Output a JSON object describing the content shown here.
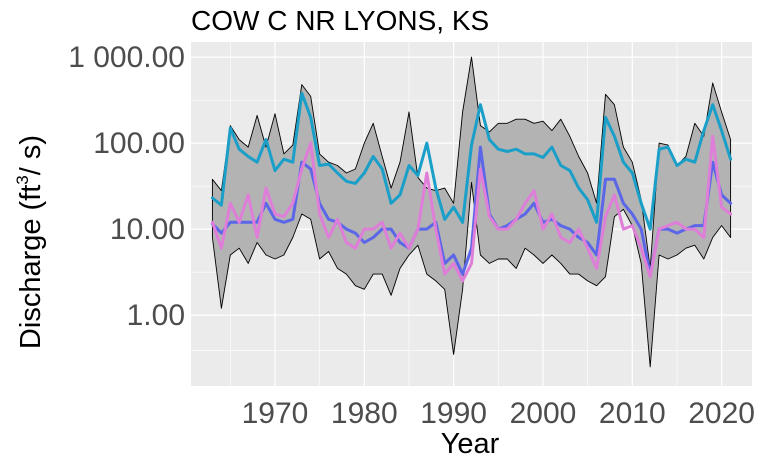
{
  "chart_data": {
    "type": "line",
    "title": "COW C NR LYONS, KS",
    "xlabel": "Year",
    "ylabel": {
      "text_before": "Discharge (ft",
      "superscript": "3",
      "text_after": "/ s)"
    },
    "y_scale": "log10",
    "ylim": [
      0.15,
      1500
    ],
    "xlim": [
      1960.6,
      2023.4
    ],
    "grid": true,
    "y_ticks": [
      {
        "value": 1,
        "label": "1.00"
      },
      {
        "value": 10,
        "label": "10.00"
      },
      {
        "value": 100,
        "label": "100.00"
      },
      {
        "value": 1000,
        "label": "1 000.00"
      }
    ],
    "x_ticks": [
      {
        "value": 1970,
        "label": "1970"
      },
      {
        "value": 1980,
        "label": "1980"
      },
      {
        "value": 1990,
        "label": "1990"
      },
      {
        "value": 2000,
        "label": "2000"
      },
      {
        "value": 2010,
        "label": "2010"
      },
      {
        "value": 2020,
        "label": "2020"
      }
    ],
    "x": [
      1963,
      1964,
      1965,
      1966,
      1967,
      1968,
      1969,
      1970,
      1971,
      1972,
      1973,
      1974,
      1975,
      1976,
      1977,
      1978,
      1979,
      1980,
      1981,
      1982,
      1983,
      1984,
      1985,
      1986,
      1987,
      1988,
      1989,
      1990,
      1991,
      1992,
      1993,
      1994,
      1995,
      1996,
      1997,
      1998,
      1999,
      2000,
      2001,
      2002,
      2003,
      2004,
      2005,
      2006,
      2007,
      2008,
      2009,
      2010,
      2011,
      2012,
      2013,
      2014,
      2015,
      2016,
      2017,
      2018,
      2019,
      2020,
      2021
    ],
    "band": {
      "upper": [
        38,
        28,
        160,
        110,
        90,
        210,
        90,
        220,
        75,
        95,
        480,
        350,
        75,
        60,
        55,
        45,
        50,
        100,
        170,
        70,
        30,
        60,
        230,
        40,
        30,
        28,
        30,
        20,
        230,
        1000,
        160,
        135,
        170,
        170,
        190,
        190,
        170,
        180,
        140,
        190,
        120,
        70,
        45,
        20,
        370,
        280,
        90,
        60,
        22,
        3.5,
        100,
        95,
        55,
        70,
        170,
        120,
        500,
        230,
        110
      ],
      "lower": [
        8,
        1.2,
        5,
        6,
        4,
        7,
        5,
        4.5,
        5,
        8,
        15,
        13,
        4.5,
        5.5,
        3.5,
        3,
        2.2,
        2,
        3,
        3,
        1.7,
        3.5,
        5,
        6.5,
        3,
        2.5,
        2,
        0.35,
        2,
        35,
        5,
        4,
        4.5,
        4.5,
        3.5,
        6,
        5,
        4,
        5,
        4,
        3,
        3,
        2.5,
        2.2,
        2.8,
        14,
        17,
        11,
        4,
        0.25,
        5,
        4.5,
        5,
        6,
        6.5,
        4.5,
        8,
        11,
        8
      ]
    },
    "series": [
      {
        "name": "",
        "color": "#1a9fc9",
        "values": [
          23,
          19,
          150,
          85,
          70,
          60,
          110,
          48,
          65,
          60,
          380,
          200,
          55,
          57,
          45,
          36,
          34,
          45,
          70,
          50,
          20,
          25,
          55,
          42,
          100,
          30,
          13,
          18,
          12,
          95,
          280,
          110,
          85,
          80,
          85,
          75,
          75,
          68,
          90,
          55,
          48,
          30,
          22,
          12,
          200,
          120,
          60,
          45,
          20,
          10,
          85,
          90,
          55,
          65,
          60,
          140,
          280,
          140,
          65
        ]
      },
      {
        "name": "",
        "color": "#5b66e8",
        "values": [
          11.5,
          9,
          12,
          12,
          12,
          12,
          20,
          13,
          12,
          13,
          60,
          50,
          20,
          13,
          12,
          10,
          9,
          7,
          8,
          10,
          10,
          7,
          6,
          10,
          10,
          12,
          4,
          5,
          3,
          6,
          90,
          15,
          10,
          11,
          13,
          15,
          20,
          12,
          13,
          11,
          10,
          8,
          7,
          5,
          38,
          38,
          20,
          15,
          10,
          3,
          10,
          10,
          9,
          10,
          11,
          11,
          60,
          25,
          20
        ]
      },
      {
        "name": "",
        "color": "#df7ed8",
        "values": [
          12,
          6,
          20,
          12,
          25,
          8,
          30,
          15,
          14,
          20,
          50,
          100,
          15,
          8,
          13,
          7,
          6,
          10,
          10,
          12,
          6,
          9,
          6,
          10,
          45,
          10,
          3,
          4,
          2.5,
          4,
          50,
          14,
          10,
          10,
          13,
          20,
          28,
          10,
          15,
          8,
          7,
          10,
          6,
          3.5,
          14,
          25,
          10,
          11,
          6,
          2.8,
          10,
          11,
          12,
          10,
          10,
          8,
          120,
          18,
          15
        ]
      }
    ]
  }
}
